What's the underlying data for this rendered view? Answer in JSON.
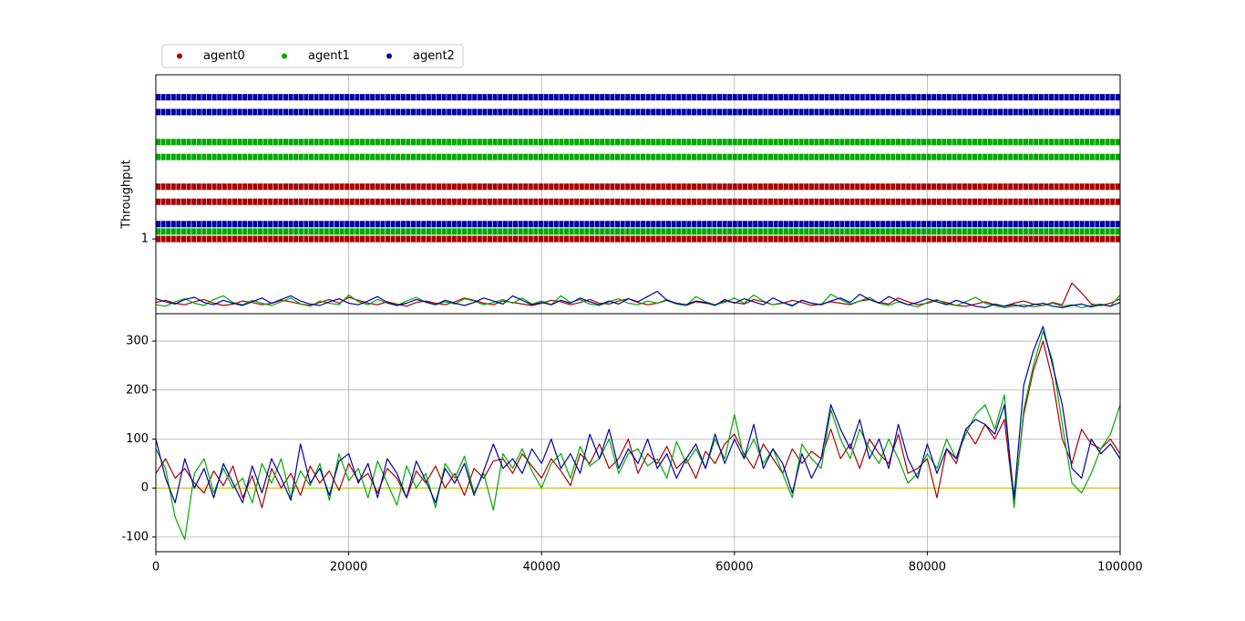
{
  "chart_data": [
    {
      "type": "scatter",
      "ylabel": "Throughput",
      "legend": "upper left",
      "grid": "x",
      "xlim": [
        0,
        100000
      ],
      "ylim": [
        0,
        3.2
      ],
      "yticks": [
        1
      ],
      "series": [
        {
          "name": "agent0",
          "color": "#aa0000",
          "x": [
            0,
            100000,
            null,
            0,
            100000,
            null,
            0,
            100000
          ],
          "values": [
            1,
            1,
            null,
            1.5,
            1.5,
            null,
            1.7,
            1.7
          ]
        },
        {
          "name": "agent1",
          "color": "#00aa00",
          "x": [
            0,
            100000,
            null,
            0,
            100000,
            null,
            0,
            100000
          ],
          "values": [
            1.1,
            1.1,
            null,
            2.1,
            2.1,
            null,
            2.3,
            2.3
          ]
        },
        {
          "name": "agent2",
          "color": "#0000aa",
          "x": [
            0,
            100000,
            null,
            0,
            100000,
            null,
            0,
            100000
          ],
          "values": [
            1.2,
            1.2,
            null,
            2.7,
            2.7,
            null,
            2.9,
            2.9
          ]
        }
      ]
    },
    {
      "type": "line",
      "xlim": [
        0,
        100000
      ],
      "ylim": [
        0,
        3.2
      ],
      "x": [
        0,
        1000,
        2000,
        3000,
        4000,
        5000,
        6000,
        7000,
        8000,
        9000,
        10000,
        11000,
        12000,
        13000,
        14000,
        15000,
        16000,
        17000,
        18000,
        19000,
        20000,
        21000,
        22000,
        23000,
        24000,
        25000,
        26000,
        27000,
        28000,
        29000,
        30000,
        31000,
        32000,
        33000,
        34000,
        35000,
        36000,
        37000,
        38000,
        39000,
        40000,
        41000,
        42000,
        43000,
        44000,
        45000,
        46000,
        47000,
        48000,
        49000,
        50000,
        51000,
        52000,
        53000,
        54000,
        55000,
        56000,
        57000,
        58000,
        59000,
        60000,
        61000,
        62000,
        63000,
        64000,
        65000,
        66000,
        67000,
        68000,
        69000,
        70000,
        71000,
        72000,
        73000,
        74000,
        75000,
        76000,
        77000,
        78000,
        79000,
        80000,
        81000,
        82000,
        83000,
        84000,
        85000,
        86000,
        87000,
        88000,
        89000,
        90000,
        91000,
        92000,
        93000,
        94000,
        95000,
        96000,
        97000,
        98000,
        99000,
        100000
      ],
      "series": [
        {
          "color": "#aa0000",
          "values": [
            0.15,
            0.18,
            0.14,
            0.12,
            0.16,
            0.19,
            0.14,
            0.11,
            0.13,
            0.17,
            0.15,
            0.12,
            0.14,
            0.18,
            0.16,
            0.13,
            0.11,
            0.15,
            0.19,
            0.14,
            0.22,
            0.18,
            0.14,
            0.12,
            0.16,
            0.13,
            0.1,
            0.15,
            0.17,
            0.14,
            0.12,
            0.16,
            0.21,
            0.18,
            0.14,
            0.12,
            0.17,
            0.15,
            0.13,
            0.11,
            0.14,
            0.18,
            0.16,
            0.12,
            0.15,
            0.19,
            0.14,
            0.13,
            0.17,
            0.2,
            0.15,
            0.12,
            0.14,
            0.18,
            0.13,
            0.11,
            0.16,
            0.14,
            0.12,
            0.17,
            0.15,
            0.13,
            0.19,
            0.16,
            0.12,
            0.14,
            0.18,
            0.15,
            0.11,
            0.13,
            0.16,
            0.14,
            0.12,
            0.17,
            0.19,
            0.15,
            0.13,
            0.21,
            0.16,
            0.12,
            0.14,
            0.18,
            0.15,
            0.11,
            0.1,
            0.13,
            0.16,
            0.12,
            0.1,
            0.14,
            0.17,
            0.13,
            0.11,
            0.15,
            0.12,
            0.41,
            0.28,
            0.13,
            0.11,
            0.14,
            0.2
          ]
        },
        {
          "color": "#00aa00",
          "values": [
            0.12,
            0.1,
            0.16,
            0.2,
            0.14,
            0.11,
            0.19,
            0.24,
            0.15,
            0.12,
            0.18,
            0.14,
            0.11,
            0.16,
            0.21,
            0.13,
            0.1,
            0.17,
            0.14,
            0.12,
            0.25,
            0.16,
            0.12,
            0.19,
            0.14,
            0.11,
            0.17,
            0.22,
            0.15,
            0.12,
            0.16,
            0.13,
            0.2,
            0.17,
            0.12,
            0.15,
            0.19,
            0.14,
            0.21,
            0.13,
            0.17,
            0.12,
            0.24,
            0.15,
            0.19,
            0.13,
            0.11,
            0.16,
            0.2,
            0.14,
            0.12,
            0.17,
            0.14,
            0.19,
            0.13,
            0.11,
            0.23,
            0.16,
            0.12,
            0.15,
            0.21,
            0.14,
            0.25,
            0.17,
            0.12,
            0.15,
            0.1,
            0.18,
            0.14,
            0.12,
            0.26,
            0.19,
            0.13,
            0.17,
            0.22,
            0.14,
            0.11,
            0.16,
            0.12,
            0.09,
            0.15,
            0.19,
            0.13,
            0.11,
            0.16,
            0.22,
            0.14,
            0.11,
            0.08,
            0.1,
            0.12,
            0.09,
            0.11,
            0.14,
            0.1,
            0.12,
            0.08,
            0.11,
            0.13,
            0.1,
            0.25
          ]
        },
        {
          "color": "#0000aa",
          "values": [
            0.2,
            0.16,
            0.13,
            0.19,
            0.22,
            0.15,
            0.12,
            0.18,
            0.14,
            0.11,
            0.16,
            0.21,
            0.14,
            0.19,
            0.24,
            0.17,
            0.13,
            0.11,
            0.16,
            0.2,
            0.14,
            0.12,
            0.17,
            0.23,
            0.15,
            0.11,
            0.14,
            0.19,
            0.16,
            0.12,
            0.18,
            0.14,
            0.11,
            0.15,
            0.21,
            0.17,
            0.13,
            0.24,
            0.18,
            0.12,
            0.15,
            0.12,
            0.18,
            0.14,
            0.21,
            0.16,
            0.12,
            0.17,
            0.13,
            0.2,
            0.16,
            0.23,
            0.3,
            0.18,
            0.14,
            0.12,
            0.17,
            0.15,
            0.11,
            0.19,
            0.14,
            0.2,
            0.16,
            0.12,
            0.21,
            0.15,
            0.11,
            0.18,
            0.14,
            0.12,
            0.17,
            0.21,
            0.15,
            0.26,
            0.19,
            0.14,
            0.23,
            0.17,
            0.12,
            0.15,
            0.2,
            0.16,
            0.12,
            0.18,
            0.14,
            0.1,
            0.08,
            0.13,
            0.1,
            0.12,
            0.09,
            0.12,
            0.14,
            0.1,
            0.08,
            0.11,
            0.13,
            0.09,
            0.12,
            0.1,
            0.15
          ]
        }
      ]
    },
    {
      "type": "line",
      "grid": true,
      "xlim": [
        0,
        100000
      ],
      "ylim": [
        -130,
        356
      ],
      "xticks": [
        0,
        20000,
        40000,
        60000,
        80000,
        100000
      ],
      "yticks": [
        -100,
        0,
        100,
        200,
        300
      ],
      "hline": {
        "value": 0,
        "color": "#c8c800"
      },
      "x": [
        0,
        1000,
        2000,
        3000,
        4000,
        5000,
        6000,
        7000,
        8000,
        9000,
        10000,
        11000,
        12000,
        13000,
        14000,
        15000,
        16000,
        17000,
        18000,
        19000,
        20000,
        21000,
        22000,
        23000,
        24000,
        25000,
        26000,
        27000,
        28000,
        29000,
        30000,
        31000,
        32000,
        33000,
        34000,
        35000,
        36000,
        37000,
        38000,
        39000,
        40000,
        41000,
        42000,
        43000,
        44000,
        45000,
        46000,
        47000,
        48000,
        49000,
        50000,
        51000,
        52000,
        53000,
        54000,
        55000,
        56000,
        57000,
        58000,
        59000,
        60000,
        61000,
        62000,
        63000,
        64000,
        65000,
        66000,
        67000,
        68000,
        69000,
        70000,
        71000,
        72000,
        73000,
        74000,
        75000,
        76000,
        77000,
        78000,
        79000,
        80000,
        81000,
        82000,
        83000,
        84000,
        85000,
        86000,
        87000,
        88000,
        89000,
        90000,
        91000,
        92000,
        93000,
        94000,
        95000,
        96000,
        97000,
        98000,
        99000,
        100000
      ],
      "series": [
        {
          "color": "#aa0000",
          "values": [
            30,
            60,
            20,
            40,
            10,
            -10,
            35,
            5,
            45,
            -20,
            25,
            -40,
            40,
            0,
            30,
            -15,
            45,
            10,
            35,
            -5,
            50,
            15,
            30,
            -10,
            40,
            20,
            -20,
            35,
            10,
            45,
            0,
            30,
            -15,
            40,
            20,
            55,
            60,
            30,
            70,
            45,
            20,
            60,
            35,
            5,
            70,
            50,
            90,
            40,
            60,
            100,
            30,
            70,
            50,
            85,
            40,
            60,
            20,
            75,
            50,
            90,
            110,
            70,
            40,
            90,
            60,
            30,
            80,
            50,
            75,
            60,
            120,
            60,
            90,
            40,
            100,
            70,
            50,
            110,
            30,
            40,
            60,
            -20,
            80,
            50,
            120,
            90,
            130,
            100,
            140,
            -30,
            150,
            240,
            300,
            220,
            100,
            50,
            120,
            90,
            80,
            100,
            70
          ]
        },
        {
          "color": "#00aa00",
          "values": [
            80,
            40,
            -60,
            -105,
            30,
            60,
            -10,
            40,
            0,
            20,
            -30,
            50,
            10,
            60,
            -20,
            35,
            5,
            50,
            -25,
            70,
            15,
            40,
            -20,
            55,
            10,
            -35,
            45,
            0,
            30,
            -40,
            50,
            20,
            65,
            -10,
            30,
            -45,
            70,
            40,
            80,
            35,
            0,
            50,
            70,
            20,
            85,
            45,
            60,
            100,
            30,
            70,
            80,
            45,
            60,
            20,
            95,
            50,
            80,
            40,
            100,
            60,
            150,
            60,
            100,
            50,
            80,
            30,
            -20,
            90,
            60,
            40,
            160,
            100,
            60,
            120,
            80,
            50,
            100,
            60,
            10,
            30,
            70,
            40,
            100,
            60,
            110,
            150,
            170,
            120,
            190,
            -40,
            160,
            250,
            320,
            260,
            130,
            10,
            -10,
            30,
            80,
            110,
            170
          ]
        },
        {
          "color": "#0000aa",
          "values": [
            100,
            20,
            -30,
            60,
            0,
            40,
            -20,
            50,
            10,
            -30,
            45,
            -10,
            60,
            20,
            -25,
            90,
            10,
            40,
            -15,
            55,
            70,
            10,
            50,
            -20,
            60,
            30,
            -20,
            55,
            15,
            -30,
            40,
            10,
            50,
            -15,
            35,
            90,
            40,
            60,
            30,
            80,
            50,
            100,
            40,
            70,
            30,
            110,
            60,
            120,
            40,
            80,
            50,
            100,
            40,
            70,
            20,
            60,
            90,
            40,
            110,
            50,
            100,
            60,
            130,
            40,
            80,
            50,
            -10,
            70,
            20,
            60,
            170,
            120,
            80,
            140,
            60,
            100,
            40,
            130,
            60,
            20,
            90,
            30,
            80,
            60,
            120,
            140,
            130,
            110,
            170,
            -20,
            210,
            280,
            330,
            250,
            170,
            40,
            20,
            100,
            70,
            90,
            60
          ]
        }
      ]
    }
  ]
}
